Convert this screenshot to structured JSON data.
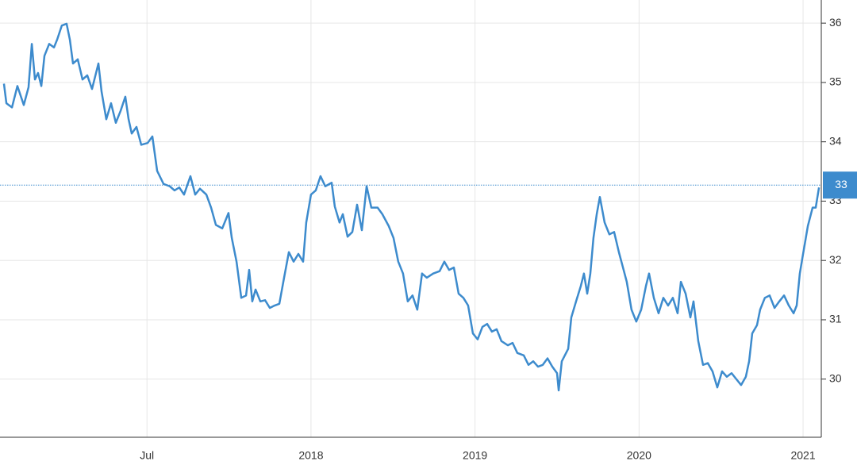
{
  "chart_data": {
    "type": "line",
    "color": "#3d8bcd",
    "grid": true,
    "xlim": [
      2016.104,
      2021.111
    ],
    "ylim": [
      29.02,
      36.39
    ],
    "xticks": [
      {
        "value": 2017,
        "label": "Jul"
      },
      2018,
      2019,
      2020,
      2021
    ],
    "yticks": [
      30,
      31,
      32,
      33,
      34,
      35,
      36
    ],
    "last_value": {
      "value": 33.27,
      "label": "33"
    },
    "x": [
      2016.128,
      2016.143,
      2016.177,
      2016.21,
      2016.249,
      2016.278,
      2016.298,
      2016.317,
      2016.336,
      2016.356,
      2016.375,
      2016.404,
      2016.433,
      2016.452,
      2016.481,
      2016.51,
      2016.53,
      2016.549,
      2016.578,
      2016.607,
      2016.636,
      2016.665,
      2016.704,
      2016.723,
      2016.752,
      2016.781,
      2016.81,
      2016.839,
      2016.868,
      2016.888,
      2016.907,
      2016.936,
      2016.965,
      2017.004,
      2017.033,
      2017.062,
      2017.101,
      2017.139,
      2017.168,
      2017.197,
      2017.226,
      2017.265,
      2017.294,
      2017.323,
      2017.362,
      2017.391,
      2017.42,
      2017.459,
      2017.497,
      2017.517,
      2017.546,
      2017.575,
      2017.604,
      2017.623,
      2017.642,
      2017.662,
      2017.691,
      2017.72,
      2017.749,
      2017.778,
      2017.807,
      2017.836,
      2017.865,
      2017.894,
      2017.923,
      2017.952,
      2017.971,
      2018.0,
      2018.029,
      2018.058,
      2018.087,
      2018.126,
      2018.145,
      2018.174,
      2018.194,
      2018.223,
      2018.252,
      2018.281,
      2018.31,
      2018.339,
      2018.368,
      2018.406,
      2018.435,
      2018.474,
      2018.503,
      2018.532,
      2018.561,
      2018.59,
      2018.619,
      2018.648,
      2018.677,
      2018.706,
      2018.745,
      2018.784,
      2018.813,
      2018.842,
      2018.871,
      2018.9,
      2018.929,
      2018.958,
      2018.987,
      2019.016,
      2019.045,
      2019.074,
      2019.103,
      2019.132,
      2019.161,
      2019.2,
      2019.229,
      2019.258,
      2019.297,
      2019.326,
      2019.355,
      2019.384,
      2019.413,
      2019.442,
      2019.471,
      2019.5,
      2019.51,
      2019.529,
      2019.568,
      2019.587,
      2019.616,
      2019.645,
      2019.664,
      2019.684,
      2019.703,
      2019.722,
      2019.742,
      2019.761,
      2019.79,
      2019.819,
      2019.848,
      2019.877,
      2019.906,
      2019.925,
      2019.954,
      2019.983,
      2020.013,
      2020.042,
      2020.061,
      2020.09,
      2020.119,
      2020.148,
      2020.177,
      2020.206,
      2020.235,
      2020.255,
      2020.284,
      2020.313,
      2020.332,
      2020.361,
      2020.39,
      2020.419,
      2020.448,
      2020.477,
      2020.506,
      2020.535,
      2020.564,
      2020.593,
      2020.622,
      2020.651,
      2020.671,
      2020.69,
      2020.719,
      2020.738,
      2020.767,
      2020.796,
      2020.826,
      2020.855,
      2020.884,
      2020.913,
      2020.942,
      2020.961,
      2020.98,
      2021.0,
      2021.029,
      2021.058,
      2021.077,
      2021.097
    ],
    "values": [
      34.98,
      34.65,
      34.58,
      34.94,
      34.62,
      34.92,
      35.65,
      35.05,
      35.16,
      34.94,
      35.45,
      35.65,
      35.59,
      35.72,
      35.96,
      35.99,
      35.72,
      35.32,
      35.39,
      35.05,
      35.12,
      34.89,
      35.32,
      34.85,
      34.38,
      34.65,
      34.32,
      34.52,
      34.76,
      34.38,
      34.14,
      34.25,
      33.95,
      33.98,
      34.09,
      33.51,
      33.29,
      33.25,
      33.18,
      33.23,
      33.11,
      33.42,
      33.11,
      33.21,
      33.11,
      32.89,
      32.6,
      32.54,
      32.8,
      32.38,
      31.98,
      31.37,
      31.41,
      31.84,
      31.31,
      31.51,
      31.31,
      31.33,
      31.2,
      31.24,
      31.27,
      31.71,
      32.14,
      31.98,
      32.11,
      31.98,
      32.64,
      33.11,
      33.18,
      33.42,
      33.25,
      33.31,
      32.91,
      32.64,
      32.78,
      32.4,
      32.48,
      32.94,
      32.51,
      33.25,
      32.89,
      32.89,
      32.78,
      32.58,
      32.38,
      31.98,
      31.78,
      31.31,
      31.41,
      31.17,
      31.78,
      31.71,
      31.78,
      31.82,
      31.98,
      31.84,
      31.88,
      31.44,
      31.37,
      31.24,
      30.77,
      30.67,
      30.88,
      30.93,
      30.8,
      30.84,
      30.64,
      30.57,
      30.61,
      30.44,
      30.4,
      30.24,
      30.3,
      30.21,
      30.24,
      30.35,
      30.21,
      30.1,
      29.81,
      30.3,
      30.51,
      31.04,
      31.31,
      31.57,
      31.78,
      31.44,
      31.78,
      32.38,
      32.78,
      33.07,
      32.64,
      32.44,
      32.48,
      32.14,
      31.84,
      31.64,
      31.17,
      30.97,
      31.17,
      31.57,
      31.78,
      31.37,
      31.11,
      31.37,
      31.24,
      31.37,
      31.11,
      31.64,
      31.44,
      31.04,
      31.31,
      30.64,
      30.24,
      30.27,
      30.13,
      29.86,
      30.13,
      30.04,
      30.1,
      30.0,
      29.9,
      30.04,
      30.3,
      30.77,
      30.91,
      31.17,
      31.37,
      31.41,
      31.2,
      31.31,
      31.41,
      31.24,
      31.11,
      31.24,
      31.78,
      32.11,
      32.58,
      32.89,
      32.89,
      33.23
    ]
  }
}
